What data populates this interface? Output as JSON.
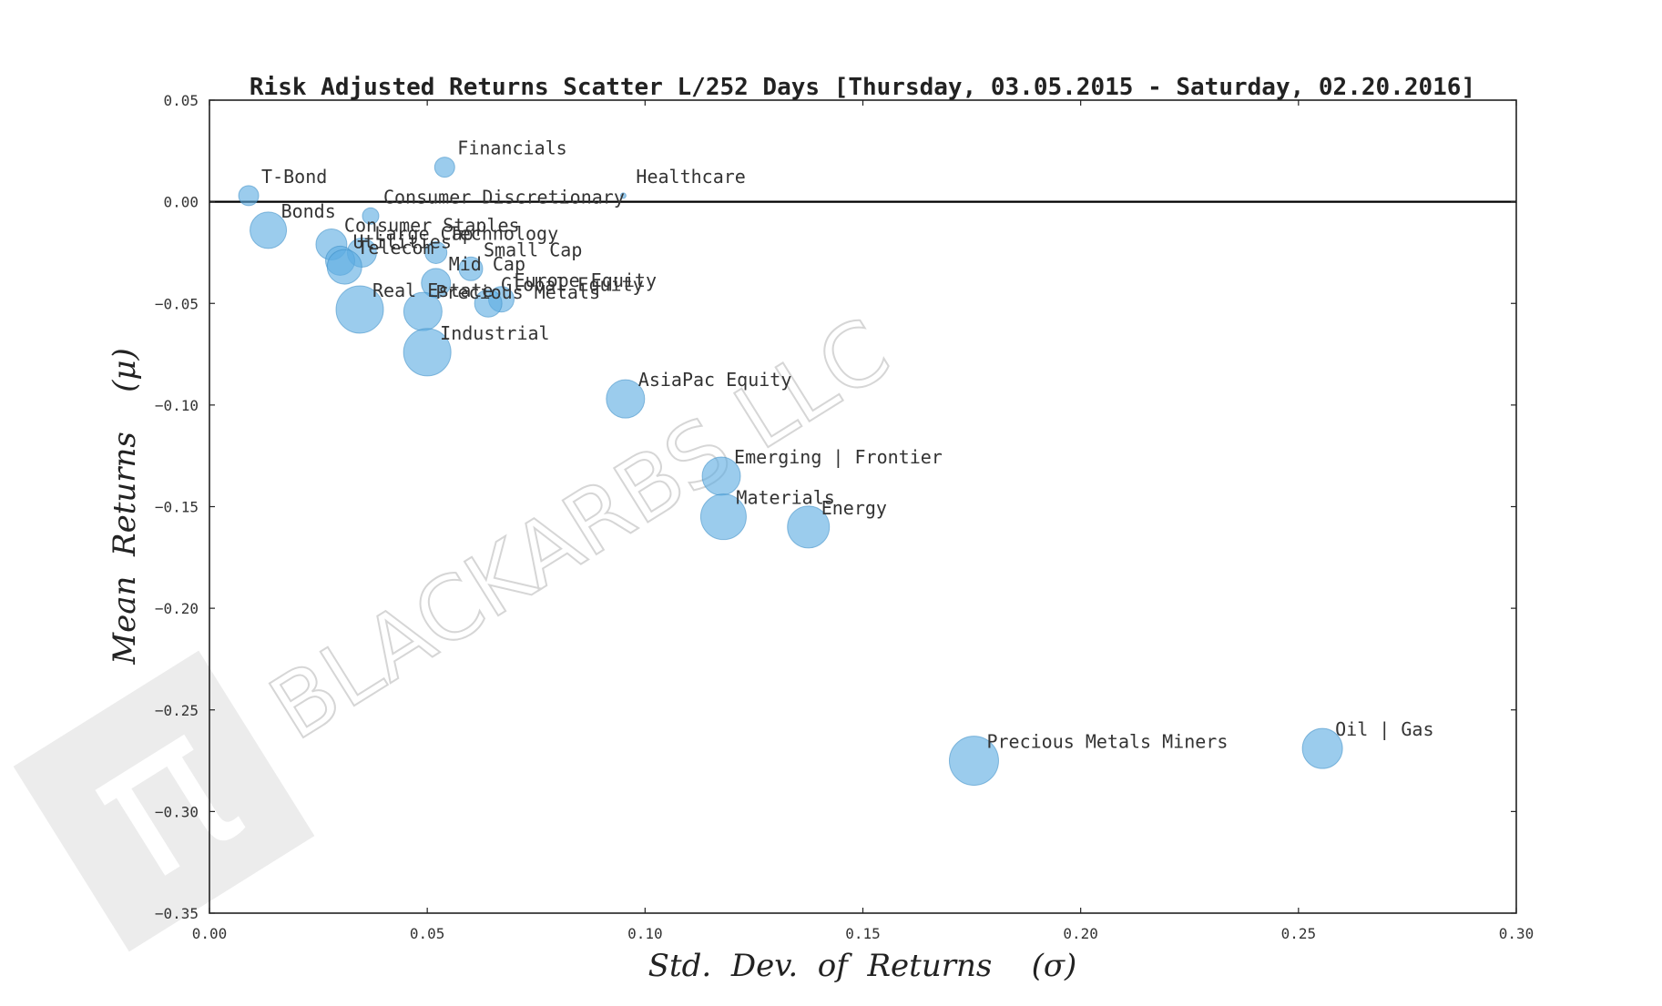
{
  "watermark": {
    "text": "BLACKARBS LLC",
    "logo_glyph": "π"
  },
  "chart_data": {
    "type": "scatter",
    "title": "Risk Adjusted Returns Scatter L/252 Days [Thursday, 03.05.2015 - Saturday, 02.20.2016]",
    "xlabel": "Std.  Dev.  of  Returns    (σ)",
    "ylabel": "Mean  Returns    (μ)",
    "xlim": [
      0.0,
      0.3
    ],
    "ylim": [
      -0.35,
      0.05
    ],
    "xticks": [
      {
        "v": 0.0,
        "label": "0.00"
      },
      {
        "v": 0.05,
        "label": "0.05"
      },
      {
        "v": 0.1,
        "label": "0.10"
      },
      {
        "v": 0.15,
        "label": "0.15"
      },
      {
        "v": 0.2,
        "label": "0.20"
      },
      {
        "v": 0.25,
        "label": "0.25"
      },
      {
        "v": 0.3,
        "label": "0.30"
      }
    ],
    "yticks": [
      {
        "v": 0.05,
        "label": "0.05"
      },
      {
        "v": 0.0,
        "label": "0.00"
      },
      {
        "v": -0.05,
        "label": "−0.05"
      },
      {
        "v": -0.1,
        "label": "−0.10"
      },
      {
        "v": -0.15,
        "label": "−0.15"
      },
      {
        "v": -0.2,
        "label": "−0.20"
      },
      {
        "v": -0.25,
        "label": "−0.25"
      },
      {
        "v": -0.3,
        "label": "−0.30"
      },
      {
        "v": -0.35,
        "label": "−0.35"
      }
    ],
    "hline": 0.0,
    "grid": false,
    "marker_color": "#5dade2",
    "points": [
      {
        "label": "T-Bond",
        "x": 0.009,
        "y": 0.003,
        "size": 11
      },
      {
        "label": "Financials",
        "x": 0.054,
        "y": 0.017,
        "size": 11
      },
      {
        "label": "Healthcare",
        "x": 0.095,
        "y": 0.003,
        "size": 3
      },
      {
        "label": "Consumer Discretionary",
        "x": 0.037,
        "y": -0.007,
        "size": 9
      },
      {
        "label": "Bonds",
        "x": 0.0135,
        "y": -0.014,
        "size": 20
      },
      {
        "label": "Consumer Staples",
        "x": 0.028,
        "y": -0.021,
        "size": 17
      },
      {
        "label": "Large Cap",
        "x": 0.035,
        "y": -0.025,
        "size": 16
      },
      {
        "label": "Technology",
        "x": 0.052,
        "y": -0.025,
        "size": 12
      },
      {
        "label": "Utilities",
        "x": 0.03,
        "y": -0.029,
        "size": 16
      },
      {
        "label": "Telecom",
        "x": 0.031,
        "y": -0.032,
        "size": 19
      },
      {
        "label": "Small Cap",
        "x": 0.06,
        "y": -0.033,
        "size": 13
      },
      {
        "label": "Mid Cap",
        "x": 0.052,
        "y": -0.04,
        "size": 16
      },
      {
        "label": "Europe Equity",
        "x": 0.067,
        "y": -0.048,
        "size": 14
      },
      {
        "label": "Global Equity",
        "x": 0.064,
        "y": -0.05,
        "size": 15
      },
      {
        "label": "Real Estate",
        "x": 0.0345,
        "y": -0.053,
        "size": 26
      },
      {
        "label": "Precious Metals",
        "x": 0.049,
        "y": -0.054,
        "size": 21
      },
      {
        "label": "Industrial",
        "x": 0.05,
        "y": -0.074,
        "size": 26
      },
      {
        "label": "AsiaPac Equity",
        "x": 0.0955,
        "y": -0.097,
        "size": 21
      },
      {
        "label": "Emerging | Frontier",
        "x": 0.1175,
        "y": -0.135,
        "size": 21
      },
      {
        "label": "Materials",
        "x": 0.118,
        "y": -0.155,
        "size": 25
      },
      {
        "label": "Energy",
        "x": 0.1375,
        "y": -0.16,
        "size": 23
      },
      {
        "label": "Precious Metals Miners",
        "x": 0.1755,
        "y": -0.275,
        "size": 27
      },
      {
        "label": "Oil | Gas",
        "x": 0.2555,
        "y": -0.269,
        "size": 22
      }
    ]
  }
}
